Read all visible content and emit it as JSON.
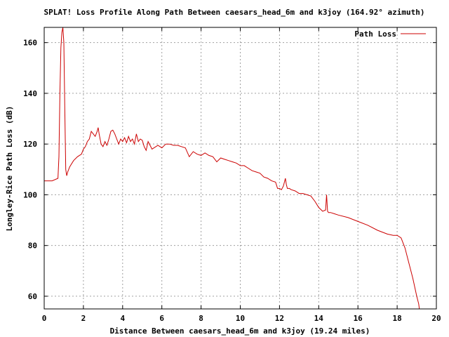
{
  "chart_data": {
    "type": "line",
    "title": "SPLAT! Loss Profile Along Path Between caesars_head_6m and k3joy (164.92° azimuth)",
    "xlabel": "Distance Between caesars_head_6m and k3joy (19.24 miles)",
    "ylabel": "Longley-Rice Path Loss (dB)",
    "xlim": [
      0,
      20
    ],
    "ylim": [
      55,
      166
    ],
    "xticks": [
      0,
      2,
      4,
      6,
      8,
      10,
      12,
      14,
      16,
      18,
      20
    ],
    "yticks": [
      60,
      80,
      100,
      120,
      140,
      160
    ],
    "grid": true,
    "legend_position": "top-right",
    "series": [
      {
        "name": "Path Loss",
        "color": "#cc0000",
        "x": [
          0,
          0.4,
          0.7,
          0.75,
          0.8,
          0.85,
          0.9,
          0.95,
          1.0,
          1.05,
          1.1,
          1.15,
          1.2,
          1.3,
          1.5,
          1.7,
          1.9,
          2.0,
          2.1,
          2.2,
          2.3,
          2.4,
          2.5,
          2.6,
          2.7,
          2.75,
          2.8,
          2.9,
          3.0,
          3.1,
          3.2,
          3.3,
          3.4,
          3.5,
          3.6,
          3.7,
          3.8,
          3.9,
          4.0,
          4.1,
          4.2,
          4.3,
          4.4,
          4.5,
          4.6,
          4.7,
          4.8,
          4.9,
          5.0,
          5.1,
          5.2,
          5.3,
          5.4,
          5.5,
          5.6,
          5.8,
          6.0,
          6.2,
          6.4,
          6.6,
          6.8,
          7.0,
          7.2,
          7.4,
          7.6,
          7.8,
          8.0,
          8.2,
          8.4,
          8.6,
          8.8,
          9.0,
          9.2,
          9.4,
          9.6,
          9.8,
          10.0,
          10.2,
          10.4,
          10.6,
          10.8,
          11.0,
          11.2,
          11.4,
          11.6,
          11.8,
          11.9,
          12.0,
          12.1,
          12.2,
          12.3,
          12.35,
          12.4,
          12.5,
          12.6,
          12.8,
          13.0,
          13.2,
          13.4,
          13.6,
          13.8,
          14.0,
          14.2,
          14.35,
          14.4,
          14.45,
          14.5,
          14.6,
          14.8,
          15.0,
          15.5,
          16.0,
          16.5,
          17.0,
          17.5,
          17.8,
          18.0,
          18.2,
          18.4,
          18.6,
          18.8,
          19.0,
          19.1,
          19.15
        ],
        "y": [
          105.5,
          105.5,
          106.5,
          115,
          140,
          158,
          164,
          166,
          160,
          135,
          110,
          107.5,
          109,
          111,
          113.5,
          115,
          116,
          118,
          119,
          121,
          122,
          125,
          124,
          123,
          125,
          126.5,
          124,
          120,
          119,
          121,
          119.5,
          122,
          125,
          125.5,
          124,
          122,
          120,
          122,
          121,
          122.5,
          120.5,
          123,
          121,
          122,
          120,
          124,
          121,
          122,
          121.5,
          119,
          117.5,
          121,
          119.5,
          118,
          118.5,
          119.5,
          118.5,
          120,
          120,
          119.5,
          119.5,
          119,
          118.5,
          115,
          117,
          116,
          115.5,
          116.5,
          115.5,
          115,
          113,
          114.5,
          114,
          113.5,
          113,
          112.5,
          111.5,
          111.5,
          110.5,
          109.5,
          109,
          108.5,
          107,
          106.5,
          105.5,
          105,
          102.5,
          102.5,
          102,
          103.5,
          106.5,
          104,
          102.5,
          102.5,
          102,
          101.5,
          100.5,
          100.5,
          100,
          99.5,
          97.5,
          95,
          93.5,
          94,
          100,
          93.5,
          93,
          93,
          92.5,
          92,
          91,
          89.5,
          88,
          86,
          84.5,
          84,
          84,
          83,
          79,
          73,
          67,
          60,
          57,
          54
        ]
      }
    ]
  }
}
